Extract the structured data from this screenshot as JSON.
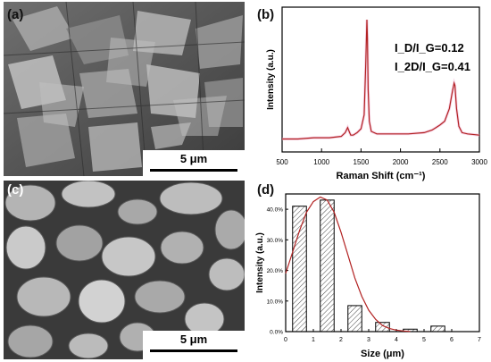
{
  "figure": {
    "panels": {
      "a": {
        "label": "(a)",
        "scale_bar": "5 μm"
      },
      "b": {
        "label": "(b)"
      },
      "c": {
        "label": "(c)",
        "scale_bar": "5 μm"
      },
      "d": {
        "label": "(d)"
      }
    }
  },
  "chart_data": [
    {
      "id": "b",
      "type": "line",
      "xlabel": "Raman Shift (cm⁻¹)",
      "ylabel": "Intensity (a.u.)",
      "xlim": [
        500,
        3000
      ],
      "xticks": [
        500,
        1000,
        1500,
        2000,
        2500,
        3000
      ],
      "annotations": [
        "I_D/I_G=0.12",
        "I_2D/I_G=0.41"
      ],
      "series": [
        {
          "color": "#b22222",
          "x": [
            500,
            700,
            900,
            1100,
            1250,
            1300,
            1330,
            1350,
            1370,
            1400,
            1450,
            1500,
            1540,
            1560,
            1575,
            1582,
            1590,
            1605,
            1630,
            1700,
            1900,
            2100,
            2300,
            2400,
            2450,
            2500,
            2560,
            2620,
            2660,
            2680,
            2690,
            2710,
            2740,
            2780,
            2850,
            3000
          ],
          "y": [
            0.06,
            0.06,
            0.07,
            0.07,
            0.08,
            0.11,
            0.15,
            0.12,
            0.09,
            0.09,
            0.11,
            0.14,
            0.25,
            0.65,
            1.0,
            0.85,
            0.45,
            0.2,
            0.12,
            0.1,
            0.1,
            0.1,
            0.11,
            0.13,
            0.15,
            0.17,
            0.2,
            0.3,
            0.44,
            0.5,
            0.48,
            0.3,
            0.16,
            0.11,
            0.1,
            0.09
          ]
        }
      ]
    },
    {
      "id": "d",
      "type": "bar",
      "xlabel": "Size (μm)",
      "ylabel": "Intensity (a.u.)",
      "xlim": [
        0,
        7
      ],
      "ylim": [
        0,
        45
      ],
      "xticks": [
        0,
        1,
        2,
        3,
        4,
        5,
        6,
        7
      ],
      "yticks": [
        "0.0%",
        "10.0%",
        "20.0%",
        "30.0%",
        "40.0%"
      ],
      "ytick_values": [
        0,
        10,
        20,
        30,
        40
      ],
      "bars": [
        {
          "x0": 0.25,
          "x1": 0.75,
          "value": 41
        },
        {
          "x0": 1.25,
          "x1": 1.75,
          "value": 43
        },
        {
          "x0": 2.25,
          "x1": 2.75,
          "value": 8.5
        },
        {
          "x0": 3.25,
          "x1": 3.75,
          "value": 3
        },
        {
          "x0": 4.25,
          "x1": 4.75,
          "value": 0.8
        },
        {
          "x0": 5.25,
          "x1": 5.75,
          "value": 1.8
        }
      ],
      "fit_curve": {
        "color": "#b22222",
        "x": [
          0,
          0.25,
          0.5,
          0.75,
          1.0,
          1.25,
          1.5,
          1.75,
          2.0,
          2.25,
          2.5,
          2.75,
          3.0,
          3.25,
          3.5,
          3.75,
          4.0,
          4.25,
          4.5
        ],
        "y": [
          19,
          26,
          33,
          39,
          42.5,
          44,
          43,
          39,
          32.5,
          25,
          17.5,
          11.5,
          7,
          4,
          2,
          1,
          0.5,
          0.2,
          0.05
        ]
      }
    }
  ]
}
